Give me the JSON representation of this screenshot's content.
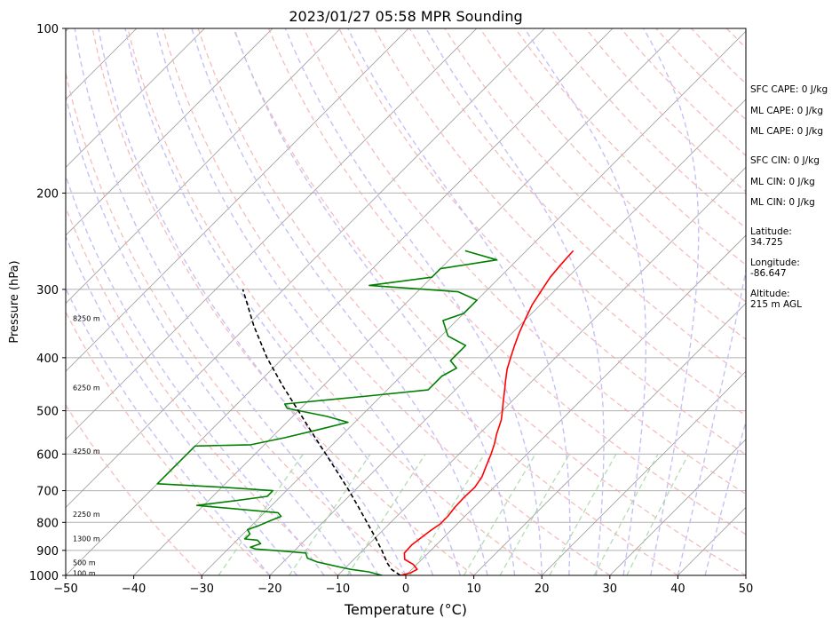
{
  "chart_data": {
    "type": "line",
    "title": "2023/01/27 05:58 MPR Sounding",
    "xlabel": "Temperature (°C)",
    "ylabel": "Pressure (hPa)",
    "xlim": [
      -50,
      50
    ],
    "ylim": [
      1000,
      100
    ],
    "y_scale": "log",
    "skew": "temperature isotherms skewed",
    "grid": true,
    "x_ticks": [
      "−50",
      "−40",
      "−30",
      "−20",
      "−10",
      "0",
      "10",
      "20",
      "30",
      "40",
      "50"
    ],
    "x_tick_values": [
      -50,
      -40,
      -30,
      -20,
      -10,
      0,
      10,
      20,
      30,
      40,
      50
    ],
    "y_ticks": [
      "100",
      "200",
      "300",
      "400",
      "500",
      "600",
      "700",
      "800",
      "900",
      "1000"
    ],
    "y_tick_values": [
      100,
      200,
      300,
      400,
      500,
      600,
      700,
      800,
      900,
      1000
    ],
    "height_labels": [
      {
        "text": "100 m",
        "p": 995
      },
      {
        "text": "500 m",
        "p": 950
      },
      {
        "text": "1300 m",
        "p": 860
      },
      {
        "text": "2250 m",
        "p": 775
      },
      {
        "text": "4250 m",
        "p": 595
      },
      {
        "text": "6250 m",
        "p": 455
      },
      {
        "text": "8250 m",
        "p": 340
      }
    ],
    "series": [
      {
        "role": "temperature",
        "color": "#ff0000",
        "points": [
          [
            1000,
            -0.8
          ],
          [
            990,
            0.3
          ],
          [
            975,
            0.8
          ],
          [
            955,
            -0.5
          ],
          [
            935,
            -2.5
          ],
          [
            910,
            -3.5
          ],
          [
            880,
            -3.6
          ],
          [
            855,
            -3.3
          ],
          [
            830,
            -3.0
          ],
          [
            805,
            -2.5
          ],
          [
            780,
            -2.5
          ],
          [
            750,
            -2.8
          ],
          [
            720,
            -2.9
          ],
          [
            690,
            -2.8
          ],
          [
            660,
            -3.3
          ],
          [
            630,
            -4.3
          ],
          [
            600,
            -5.3
          ],
          [
            575,
            -6.3
          ],
          [
            550,
            -7.5
          ],
          [
            520,
            -8.8
          ],
          [
            500,
            -10.0
          ],
          [
            480,
            -11.3
          ],
          [
            460,
            -12.6
          ],
          [
            440,
            -14.0
          ],
          [
            420,
            -15.4
          ],
          [
            400,
            -16.6
          ],
          [
            380,
            -17.8
          ],
          [
            360,
            -19.0
          ],
          [
            340,
            -20.1
          ],
          [
            320,
            -21.2
          ],
          [
            300,
            -22.0
          ],
          [
            285,
            -22.6
          ],
          [
            270,
            -22.9
          ],
          [
            255,
            -23.1
          ]
        ]
      },
      {
        "role": "dewpoint",
        "color": "#008000",
        "points": [
          [
            1000,
            -3.5
          ],
          [
            985,
            -6
          ],
          [
            975,
            -9
          ],
          [
            965,
            -11
          ],
          [
            955,
            -13
          ],
          [
            945,
            -15
          ],
          [
            930,
            -17
          ],
          [
            910,
            -18
          ],
          [
            902,
            -22
          ],
          [
            895,
            -26
          ],
          [
            888,
            -27
          ],
          [
            875,
            -26
          ],
          [
            862,
            -27
          ],
          [
            858,
            -29
          ],
          [
            840,
            -29
          ],
          [
            825,
            -30
          ],
          [
            812,
            -29
          ],
          [
            795,
            -28
          ],
          [
            780,
            -27
          ],
          [
            768,
            -28
          ],
          [
            745,
            -41
          ],
          [
            730,
            -36
          ],
          [
            717,
            -32
          ],
          [
            710,
            -32
          ],
          [
            700,
            -32
          ],
          [
            690,
            -40
          ],
          [
            680,
            -50
          ],
          [
            580,
            -50
          ],
          [
            577,
            -42
          ],
          [
            560,
            -38
          ],
          [
            540,
            -34
          ],
          [
            525,
            -31
          ],
          [
            512,
            -35
          ],
          [
            495,
            -42
          ],
          [
            486,
            -43
          ],
          [
            470,
            -32
          ],
          [
            458,
            -24
          ],
          [
            450,
            -24
          ],
          [
            432,
            -24
          ],
          [
            418,
            -23
          ],
          [
            405,
            -25
          ],
          [
            392,
            -25
          ],
          [
            380,
            -25
          ],
          [
            365,
            -29
          ],
          [
            342,
            -32
          ],
          [
            332,
            -30
          ],
          [
            314,
            -30
          ],
          [
            303,
            -34
          ],
          [
            295,
            -48
          ],
          [
            285,
            -40
          ],
          [
            275,
            -40
          ],
          [
            265,
            -33
          ],
          [
            255,
            -39
          ]
        ]
      },
      {
        "role": "parcel",
        "color": "#000000",
        "style": "dashed",
        "points": [
          [
            1000,
            -0.8
          ],
          [
            975,
            -3.0
          ],
          [
            950,
            -4.5
          ],
          [
            900,
            -7.2
          ],
          [
            850,
            -10.2
          ],
          [
            800,
            -13.5
          ],
          [
            750,
            -17.0
          ],
          [
            700,
            -20.8
          ],
          [
            650,
            -25.0
          ],
          [
            600,
            -29.6
          ],
          [
            550,
            -34.6
          ],
          [
            500,
            -40.0
          ],
          [
            450,
            -46.0
          ],
          [
            400,
            -52.4
          ],
          [
            350,
            -59.0
          ],
          [
            300,
            -66.0
          ]
        ]
      }
    ]
  },
  "side_panel": {
    "sfc_cape": "SFC CAPE: 0 J/kg",
    "ml_cape_1": "ML CAPE: 0 J/kg",
    "ml_cape_2": "ML CAPE: 0 J/kg",
    "sfc_cin": "SFC CIN: 0 J/kg",
    "ml_cin_1": "ML CIN: 0 J/kg",
    "ml_cin_2": "ML CIN: 0 J/kg",
    "latitude_label": "Latitude:",
    "latitude_value": "34.725",
    "longitude_label": "Longitude:",
    "longitude_value": "-86.647",
    "altitude_label": "Altitude:",
    "altitude_value": "215 m AGL"
  }
}
